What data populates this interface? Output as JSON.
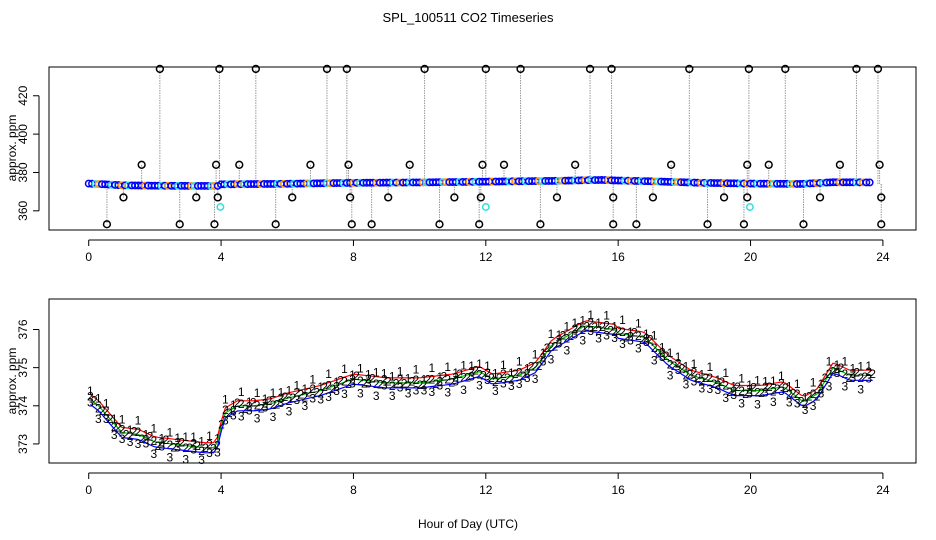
{
  "title": "SPL_100511  CO2 Timeseries",
  "xlabel": "Hour of Day (UTC)",
  "colors": {
    "raw_line": "#9a9a9a",
    "raw_outlier": "#000000",
    "series1": "#ff0000",
    "series2": "#00bb00",
    "series3": "#0000ff",
    "cyan": "#33dddd",
    "orange": "#ff9900"
  },
  "chart_data": [
    {
      "type": "scatter",
      "panel": "top",
      "ylabel": "approx. ppm",
      "xlim": [
        -1.2,
        25
      ],
      "ylim": [
        350,
        435
      ],
      "xticks": [
        0,
        4,
        8,
        12,
        16,
        20,
        24
      ],
      "yticks": [
        360,
        380,
        400,
        420
      ],
      "baseline": [
        [
          0,
          374.2
        ],
        [
          0.5,
          373.8
        ],
        [
          1,
          373.3
        ],
        [
          2,
          373.1
        ],
        [
          3,
          373.0
        ],
        [
          3.9,
          373.0
        ],
        [
          4,
          373.8
        ],
        [
          6,
          374.1
        ],
        [
          8,
          374.6
        ],
        [
          10,
          374.8
        ],
        [
          12,
          375.2
        ],
        [
          14,
          375.6
        ],
        [
          15.5,
          376.1
        ],
        [
          16,
          375.8
        ],
        [
          17,
          375.4
        ],
        [
          18.5,
          374.6
        ],
        [
          20,
          374.2
        ],
        [
          21.5,
          374.0
        ],
        [
          22.5,
          374.9
        ],
        [
          23.7,
          374.8
        ]
      ],
      "outliers_high": [
        [
          2.15,
          434
        ],
        [
          3.95,
          434
        ],
        [
          5.05,
          434
        ],
        [
          7.2,
          434
        ],
        [
          7.8,
          434
        ],
        [
          10.15,
          434
        ],
        [
          12.0,
          434
        ],
        [
          13.05,
          434
        ],
        [
          15.15,
          434
        ],
        [
          15.8,
          434
        ],
        [
          18.15,
          434
        ],
        [
          19.95,
          434
        ],
        [
          21.05,
          434
        ],
        [
          23.2,
          434
        ],
        [
          23.85,
          434
        ]
      ],
      "outliers_mid": [
        [
          1.6,
          384
        ],
        [
          3.85,
          384
        ],
        [
          4.55,
          384
        ],
        [
          6.7,
          384
        ],
        [
          7.85,
          384
        ],
        [
          9.7,
          384
        ],
        [
          11.9,
          384
        ],
        [
          12.55,
          384
        ],
        [
          14.7,
          384
        ],
        [
          17.6,
          384
        ],
        [
          19.9,
          384
        ],
        [
          20.55,
          384
        ],
        [
          22.7,
          384
        ],
        [
          23.9,
          384
        ]
      ],
      "outliers_low": [
        [
          0.55,
          353
        ],
        [
          1.05,
          367
        ],
        [
          2.75,
          353
        ],
        [
          3.25,
          367
        ],
        [
          3.8,
          353
        ],
        [
          3.9,
          367
        ],
        [
          5.65,
          353
        ],
        [
          6.15,
          367
        ],
        [
          7.95,
          353
        ],
        [
          7.9,
          367
        ],
        [
          8.55,
          353
        ],
        [
          9.05,
          367
        ],
        [
          10.6,
          353
        ],
        [
          11.05,
          367
        ],
        [
          11.8,
          353
        ],
        [
          11.85,
          367
        ],
        [
          13.65,
          353
        ],
        [
          14.15,
          367
        ],
        [
          15.85,
          353
        ],
        [
          15.85,
          367
        ],
        [
          16.55,
          353
        ],
        [
          17.05,
          367
        ],
        [
          18.7,
          353
        ],
        [
          19.2,
          367
        ],
        [
          19.8,
          353
        ],
        [
          19.9,
          367
        ],
        [
          21.6,
          353
        ],
        [
          22.1,
          367
        ],
        [
          23.95,
          353
        ],
        [
          23.95,
          367
        ]
      ],
      "cyan_points": [
        [
          3.98,
          362
        ],
        [
          12.0,
          362
        ],
        [
          19.98,
          362
        ]
      ]
    },
    {
      "type": "line",
      "panel": "bottom",
      "ylabel": "approx. ppm",
      "xlim": [
        -1.2,
        25
      ],
      "ylim": [
        372.5,
        376.8
      ],
      "xticks": [
        0,
        4,
        8,
        12,
        16,
        20,
        24
      ],
      "yticks": [
        373,
        374,
        375,
        376
      ],
      "series": [
        {
          "name": "1",
          "offset": 0.22,
          "jitter": 0.28
        },
        {
          "name": "2",
          "offset": 0.0,
          "jitter": 0.18
        },
        {
          "name": "3",
          "offset": -0.22,
          "jitter": 0.3
        }
      ],
      "center": [
        [
          0,
          374.2
        ],
        [
          0.3,
          374.0
        ],
        [
          0.7,
          373.6
        ],
        [
          1.0,
          373.3
        ],
        [
          1.5,
          373.25
        ],
        [
          2.0,
          373.05
        ],
        [
          2.5,
          373.0
        ],
        [
          3.0,
          372.95
        ],
        [
          3.5,
          372.9
        ],
        [
          3.85,
          372.9
        ],
        [
          4.1,
          373.8
        ],
        [
          4.5,
          374.0
        ],
        [
          5.0,
          374.0
        ],
        [
          5.5,
          374.05
        ],
        [
          6.0,
          374.2
        ],
        [
          7.0,
          374.4
        ],
        [
          8.0,
          374.7
        ],
        [
          9.0,
          374.6
        ],
        [
          10.0,
          374.6
        ],
        [
          11.0,
          374.7
        ],
        [
          11.8,
          374.9
        ],
        [
          12.2,
          374.7
        ],
        [
          13.0,
          374.8
        ],
        [
          13.5,
          375.0
        ],
        [
          14.0,
          375.6
        ],
        [
          15.0,
          376.1
        ],
        [
          15.9,
          376.0
        ],
        [
          16.0,
          375.9
        ],
        [
          16.8,
          375.8
        ],
        [
          17.5,
          375.2
        ],
        [
          18.2,
          374.8
        ],
        [
          19.0,
          374.6
        ],
        [
          19.5,
          374.4
        ],
        [
          19.95,
          374.4
        ],
        [
          20.3,
          374.4
        ],
        [
          21.0,
          374.5
        ],
        [
          21.6,
          374.1
        ],
        [
          22.0,
          374.3
        ],
        [
          22.5,
          375.0
        ],
        [
          23.0,
          374.8
        ],
        [
          23.7,
          374.8
        ]
      ]
    }
  ]
}
